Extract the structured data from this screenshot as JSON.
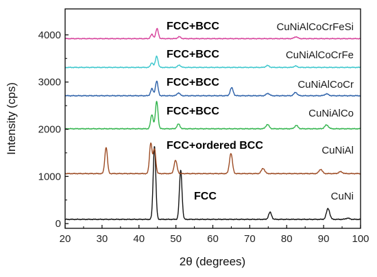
{
  "chart_data": {
    "type": "line",
    "xlabel": "2θ (degrees)",
    "ylabel": "Intensity (cps)",
    "xlim": [
      20,
      100
    ],
    "ylim": [
      -100,
      4550
    ],
    "xticks": [
      20,
      30,
      40,
      50,
      60,
      70,
      80,
      90,
      100
    ],
    "yticks": [
      0,
      1000,
      2000,
      3000,
      4000
    ],
    "grid": false,
    "legend": "none",
    "series": [
      {
        "name": "CuNi",
        "phase": "FCC",
        "color": "#111111",
        "baseline": 90,
        "peaks": [
          [
            44.2,
            1550,
            0.35
          ],
          [
            51.3,
            1040,
            0.35
          ],
          [
            75.5,
            150,
            0.4
          ],
          [
            91.2,
            230,
            0.45
          ],
          [
            96.5,
            25,
            0.5
          ]
        ]
      },
      {
        "name": "CuNiAl",
        "phase": "FCC+ordered BCC",
        "color": "#9c4a22",
        "baseline": 1060,
        "peaks": [
          [
            31.1,
            560,
            0.35
          ],
          [
            43.2,
            650,
            0.35
          ],
          [
            44.2,
            520,
            0.35
          ],
          [
            49.9,
            280,
            0.4
          ],
          [
            64.9,
            430,
            0.4
          ],
          [
            73.6,
            110,
            0.45
          ],
          [
            89.2,
            90,
            0.45
          ],
          [
            94.6,
            40,
            0.5
          ]
        ]
      },
      {
        "name": "CuNiAlCo",
        "phase": "FCC+BCC",
        "color": "#2fb34a",
        "baseline": 2010,
        "peaks": [
          [
            43.5,
            300,
            0.35
          ],
          [
            44.8,
            580,
            0.35
          ],
          [
            50.7,
            100,
            0.4
          ],
          [
            74.8,
            90,
            0.45
          ],
          [
            82.6,
            70,
            0.45
          ],
          [
            90.8,
            80,
            0.5
          ]
        ]
      },
      {
        "name": "CuNiAlCoCr",
        "phase": "FCC+BCC",
        "color": "#2a5fa8",
        "baseline": 2710,
        "peaks": [
          [
            43.5,
            150,
            0.35
          ],
          [
            44.8,
            310,
            0.35
          ],
          [
            50.7,
            60,
            0.4
          ],
          [
            65.1,
            170,
            0.4
          ],
          [
            74.9,
            50,
            0.45
          ],
          [
            82.4,
            70,
            0.45
          ],
          [
            90.8,
            40,
            0.5
          ]
        ]
      },
      {
        "name": "CuNiAlCoCrFe",
        "phase": "FCC+BCC",
        "color": "#39c6cc",
        "baseline": 3310,
        "peaks": [
          [
            43.5,
            100,
            0.35
          ],
          [
            44.8,
            240,
            0.35
          ],
          [
            50.9,
            50,
            0.4
          ],
          [
            74.8,
            40,
            0.45
          ],
          [
            82.4,
            30,
            0.45
          ]
        ]
      },
      {
        "name": "CuNiAlCoCrFeSi",
        "phase": "FCC+BCC",
        "color": "#d6409a",
        "baseline": 3920,
        "peaks": [
          [
            43.5,
            90,
            0.35
          ],
          [
            44.9,
            210,
            0.35
          ],
          [
            50.9,
            40,
            0.4
          ],
          [
            82.5,
            40,
            0.45
          ]
        ]
      }
    ]
  }
}
